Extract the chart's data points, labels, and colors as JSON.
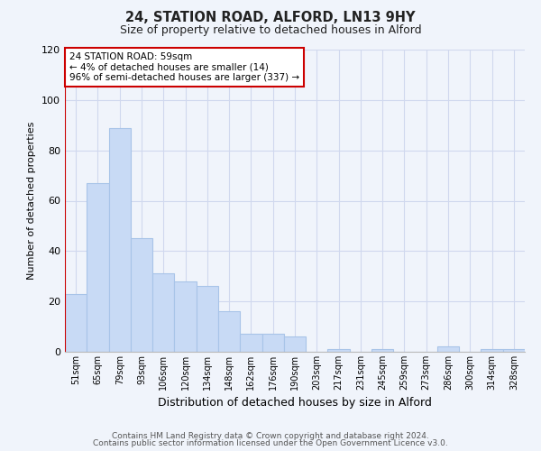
{
  "title": "24, STATION ROAD, ALFORD, LN13 9HY",
  "subtitle": "Size of property relative to detached houses in Alford",
  "xlabel": "Distribution of detached houses by size in Alford",
  "ylabel": "Number of detached properties",
  "bar_color": "#c8daf5",
  "bar_edge_color": "#a8c4e8",
  "categories": [
    "51sqm",
    "65sqm",
    "79sqm",
    "93sqm",
    "106sqm",
    "120sqm",
    "134sqm",
    "148sqm",
    "162sqm",
    "176sqm",
    "190sqm",
    "203sqm",
    "217sqm",
    "231sqm",
    "245sqm",
    "259sqm",
    "273sqm",
    "286sqm",
    "300sqm",
    "314sqm",
    "328sqm"
  ],
  "values": [
    23,
    67,
    89,
    45,
    31,
    28,
    26,
    16,
    7,
    7,
    6,
    0,
    1,
    0,
    1,
    0,
    0,
    2,
    0,
    1,
    1
  ],
  "ylim": [
    0,
    120
  ],
  "yticks": [
    0,
    20,
    40,
    60,
    80,
    100,
    120
  ],
  "marker_color": "#cc0000",
  "annotation_title": "24 STATION ROAD: 59sqm",
  "annotation_line1": "← 4% of detached houses are smaller (14)",
  "annotation_line2": "96% of semi-detached houses are larger (337) →",
  "footer_line1": "Contains HM Land Registry data © Crown copyright and database right 2024.",
  "footer_line2": "Contains public sector information licensed under the Open Government Licence v3.0.",
  "background_color": "#f0f4fb",
  "grid_color": "#d0d8ee"
}
